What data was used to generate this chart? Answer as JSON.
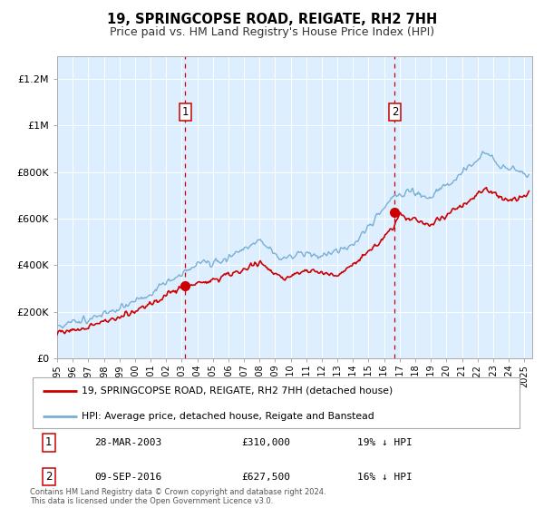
{
  "title": "19, SPRINGCOPSE ROAD, REIGATE, RH2 7HH",
  "subtitle": "Price paid vs. HM Land Registry's House Price Index (HPI)",
  "ylim": [
    0,
    1300000
  ],
  "xlim_start": 1995.0,
  "xlim_end": 2025.5,
  "background_color": "#ffffff",
  "plot_bg_color": "#ddeeff",
  "grid_color": "#ffffff",
  "sale1_date": 2003.23,
  "sale1_price": 310000,
  "sale1_label": "1",
  "sale2_date": 2016.69,
  "sale2_price": 627500,
  "sale2_label": "2",
  "hpi_line_color": "#7aafd4",
  "price_line_color": "#cc0000",
  "sale_marker_color": "#cc0000",
  "dashed_line_color": "#cc0000",
  "legend_line1": "19, SPRINGCOPSE ROAD, REIGATE, RH2 7HH (detached house)",
  "legend_line2": "HPI: Average price, detached house, Reigate and Banstead",
  "table_row1_num": "1",
  "table_row1_date": "28-MAR-2003",
  "table_row1_price": "£310,000",
  "table_row1_hpi": "19% ↓ HPI",
  "table_row2_num": "2",
  "table_row2_date": "09-SEP-2016",
  "table_row2_price": "£627,500",
  "table_row2_hpi": "16% ↓ HPI",
  "footer": "Contains HM Land Registry data © Crown copyright and database right 2024.\nThis data is licensed under the Open Government Licence v3.0.",
  "yticks": [
    0,
    200000,
    400000,
    600000,
    800000,
    1000000,
    1200000
  ],
  "ytick_labels": [
    "£0",
    "£200K",
    "£400K",
    "£600K",
    "£800K",
    "£1M",
    "£1.2M"
  ]
}
